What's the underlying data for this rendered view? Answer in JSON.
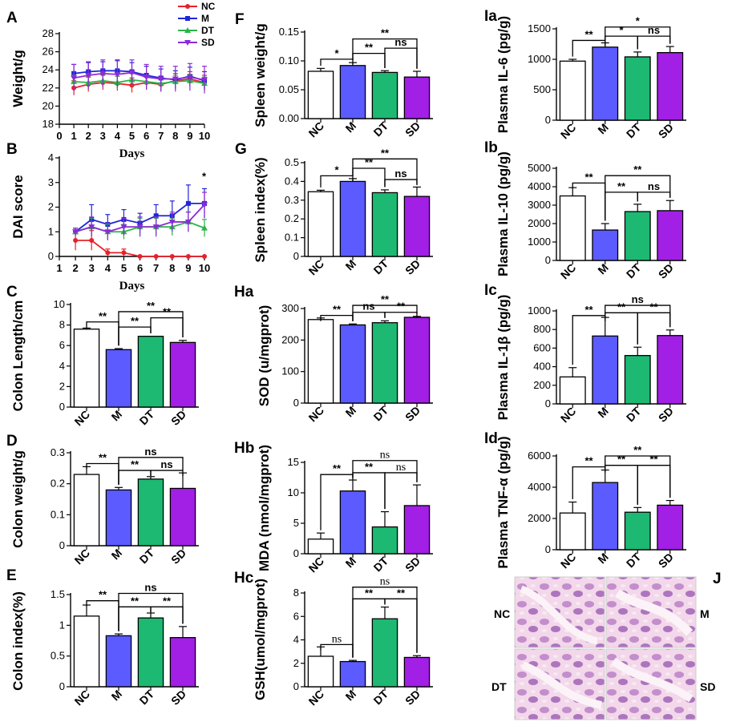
{
  "colors": {
    "NC": "#ffffff",
    "M": "#5b5bff",
    "DT": "#1db872",
    "SD": "#a21fe6",
    "NC_line": "#e8202a",
    "M_line": "#1f26d6",
    "DT_line": "#2bb34a",
    "SD_line": "#8b2bd6"
  },
  "legend": [
    "NC",
    "M",
    "DT",
    "SD"
  ],
  "chart_data": [
    {
      "id": "A",
      "panel_label": "A",
      "type": "line",
      "ylabel": "Weight/g",
      "xlabel": "Days",
      "x": [
        1,
        2,
        3,
        4,
        5,
        6,
        7,
        8,
        9,
        10
      ],
      "xlim": [
        0,
        10
      ],
      "xticks": [
        0,
        1,
        2,
        3,
        4,
        5,
        6,
        7,
        8,
        9,
        10
      ],
      "ylim": [
        18,
        28
      ],
      "yticks": [
        18,
        20,
        22,
        24,
        26,
        28
      ],
      "series": [
        {
          "name": "NC",
          "values": [
            22.0,
            22.4,
            22.6,
            22.5,
            22.3,
            22.6,
            22.4,
            22.8,
            23.0,
            22.6
          ],
          "errors": [
            0.8,
            0.8,
            0.8,
            0.8,
            0.8,
            0.8,
            0.8,
            0.8,
            0.8,
            0.8
          ]
        },
        {
          "name": "M",
          "values": [
            23.6,
            23.8,
            23.9,
            23.9,
            23.8,
            23.4,
            23.1,
            22.9,
            23.3,
            22.8
          ],
          "errors": [
            1.0,
            1.0,
            1.0,
            1.2,
            1.0,
            1.0,
            1.0,
            1.0,
            1.0,
            1.0
          ]
        },
        {
          "name": "DT",
          "values": [
            22.7,
            22.6,
            22.8,
            22.6,
            22.9,
            22.7,
            22.5,
            22.7,
            22.8,
            22.5
          ],
          "errors": [
            0.7,
            0.7,
            0.7,
            0.7,
            0.7,
            0.7,
            0.7,
            0.7,
            0.7,
            0.7
          ]
        },
        {
          "name": "SD",
          "values": [
            23.1,
            23.4,
            23.6,
            23.5,
            23.7,
            23.2,
            23.0,
            23.0,
            23.2,
            22.9
          ],
          "errors": [
            1.5,
            1.5,
            1.5,
            1.5,
            1.4,
            1.4,
            1.4,
            1.4,
            1.5,
            1.5
          ]
        }
      ]
    },
    {
      "id": "B",
      "panel_label": "B",
      "type": "line",
      "ylabel": "DAI score",
      "xlabel": "Days",
      "x": [
        2,
        3,
        4,
        5,
        6,
        7,
        8,
        9,
        10
      ],
      "xlim": [
        1,
        10
      ],
      "xticks": [
        1,
        2,
        3,
        4,
        5,
        6,
        7,
        8,
        9,
        10
      ],
      "ylim": [
        0,
        4
      ],
      "yticks": [
        0,
        1,
        2,
        3,
        4
      ],
      "annotation": {
        "text": "*",
        "x": 10,
        "y": 3.1
      },
      "series": [
        {
          "name": "NC",
          "values": [
            0.65,
            0.65,
            0.15,
            0.15,
            0.0,
            0.0,
            0.0,
            0.0,
            0.0
          ],
          "errors": [
            0.4,
            0.4,
            0.15,
            0.15,
            0,
            0,
            0,
            0,
            0
          ]
        },
        {
          "name": "M",
          "values": [
            1.0,
            1.5,
            1.3,
            1.5,
            1.35,
            1.65,
            1.65,
            2.15,
            2.15
          ],
          "errors": [
            0.15,
            0.6,
            0.4,
            0.4,
            0.4,
            0.45,
            0.6,
            0.75,
            0.6
          ]
        },
        {
          "name": "DT",
          "values": [
            1.0,
            1.2,
            1.0,
            1.0,
            1.2,
            1.2,
            1.2,
            1.4,
            1.15
          ],
          "errors": [
            0.15,
            0.35,
            0.3,
            0.3,
            0.35,
            0.35,
            0.35,
            0.4,
            0.35
          ]
        },
        {
          "name": "SD",
          "values": [
            1.0,
            1.2,
            1.0,
            1.2,
            1.2,
            1.2,
            1.4,
            1.4,
            2.1
          ],
          "errors": [
            0.15,
            0.4,
            0.35,
            0.35,
            0.4,
            0.4,
            0.4,
            0.4,
            0.5
          ]
        }
      ]
    },
    {
      "id": "C",
      "panel_label": "C",
      "type": "bar",
      "ylabel": "Colon Length/cm",
      "categories": [
        "NC",
        "M",
        "DT",
        "SD"
      ],
      "values": [
        7.6,
        5.6,
        6.9,
        6.3
      ],
      "errors": [
        0.1,
        0.1,
        0.0,
        0.2
      ],
      "ylim": [
        0,
        10
      ],
      "yticks": [
        0,
        2,
        4,
        6,
        8,
        10
      ],
      "brackets": [
        {
          "from": 0,
          "to": 1,
          "label": "**",
          "y": 8.3
        },
        {
          "from": 1,
          "to": 3,
          "label": "**",
          "y": 9.3
        },
        {
          "from": 1,
          "to": 2,
          "label": "**",
          "y": 7.8
        },
        {
          "from": 2,
          "to": 3,
          "label": "**",
          "y": 8.7
        }
      ]
    },
    {
      "id": "D",
      "panel_label": "D",
      "type": "bar",
      "ylabel": "Colon weight/g",
      "categories": [
        "NC",
        "M",
        "DT",
        "SD"
      ],
      "values": [
        0.23,
        0.18,
        0.215,
        0.185
      ],
      "errors": [
        0.025,
        0.008,
        0.008,
        0.05
      ],
      "ylim": [
        0,
        0.3
      ],
      "yticks": [
        0.0,
        0.1,
        0.2,
        0.3
      ],
      "brackets": [
        {
          "from": 0,
          "to": 1,
          "label": "**",
          "y": 0.265
        },
        {
          "from": 1,
          "to": 2,
          "label": "**",
          "y": 0.243
        },
        {
          "from": 1,
          "to": 3,
          "label": "ns",
          "y": 0.285
        },
        {
          "from": 2,
          "to": 3,
          "label": "ns",
          "y": 0.243
        }
      ]
    },
    {
      "id": "E",
      "panel_label": "E",
      "type": "bar",
      "ylabel": "Colon index(%)",
      "categories": [
        "NC",
        "M",
        "DT",
        "SD"
      ],
      "values": [
        1.15,
        0.83,
        1.12,
        0.8
      ],
      "errors": [
        0.18,
        0.03,
        0.08,
        0.18
      ],
      "ylim": [
        0,
        1.5
      ],
      "yticks": [
        0.0,
        0.5,
        1.0,
        1.5
      ],
      "brackets": [
        {
          "from": 0,
          "to": 1,
          "label": "**",
          "y": 1.4
        },
        {
          "from": 1,
          "to": 2,
          "label": "**",
          "y": 1.3
        },
        {
          "from": 1,
          "to": 3,
          "label": "ns",
          "y": 1.52
        },
        {
          "from": 2,
          "to": 3,
          "label": "**",
          "y": 1.3
        }
      ]
    },
    {
      "id": "F",
      "panel_label": "F",
      "type": "bar",
      "ylabel": "Spleen weight/g",
      "categories": [
        "NC",
        "M",
        "DT",
        "SD"
      ],
      "values": [
        0.082,
        0.092,
        0.08,
        0.072
      ],
      "errors": [
        0.005,
        0.005,
        0.003,
        0.01
      ],
      "ylim": [
        0,
        0.15
      ],
      "yticks": [
        0.0,
        0.05,
        0.1,
        0.15
      ],
      "yticklabels": [
        "0.00",
        "0.05",
        "0.10",
        "0.15"
      ],
      "brackets": [
        {
          "from": 0,
          "to": 1,
          "label": "*",
          "y": 0.103
        },
        {
          "from": 1,
          "to": 2,
          "label": "**",
          "y": 0.113
        },
        {
          "from": 1,
          "to": 3,
          "label": "**",
          "y": 0.138
        },
        {
          "from": 2,
          "to": 3,
          "label": "ns",
          "y": 0.122
        }
      ]
    },
    {
      "id": "G",
      "panel_label": "G",
      "type": "bar",
      "ylabel": "Spleen index(%)",
      "categories": [
        "NC",
        "M",
        "DT",
        "SD"
      ],
      "values": [
        0.345,
        0.4,
        0.34,
        0.32
      ],
      "errors": [
        0.008,
        0.015,
        0.015,
        0.05
      ],
      "ylim": [
        0,
        0.5
      ],
      "yticks": [
        0.0,
        0.1,
        0.2,
        0.3,
        0.4,
        0.5
      ],
      "brackets": [
        {
          "from": 0,
          "to": 1,
          "label": "*",
          "y": 0.43
        },
        {
          "from": 1,
          "to": 2,
          "label": "**",
          "y": 0.47
        },
        {
          "from": 1,
          "to": 3,
          "label": "**",
          "y": 0.52
        },
        {
          "from": 2,
          "to": 3,
          "label": "ns",
          "y": 0.41
        }
      ]
    },
    {
      "id": "Ha",
      "panel_label": "Ha",
      "type": "bar",
      "ylabel": "SOD (u/mgprot)",
      "categories": [
        "NC",
        "M",
        "DT",
        "SD"
      ],
      "values": [
        265,
        248,
        255,
        272
      ],
      "errors": [
        5,
        3,
        6,
        3
      ],
      "ylim": [
        0,
        300
      ],
      "yticks": [
        0,
        100,
        200,
        300
      ],
      "brackets": [
        {
          "from": 0,
          "to": 1,
          "label": "**",
          "y": 278
        },
        {
          "from": 1,
          "to": 2,
          "label": "ns",
          "y": 288
        },
        {
          "from": 1,
          "to": 3,
          "label": "**",
          "y": 310
        },
        {
          "from": 2,
          "to": 3,
          "label": "**",
          "y": 288
        }
      ]
    },
    {
      "id": "Hb",
      "panel_label": "Hb",
      "type": "bar",
      "ylabel": "MDA (nmol/mgprot)",
      "categories": [
        "NC",
        "M",
        "DT",
        "SD"
      ],
      "values": [
        2.4,
        10.3,
        4.4,
        7.9
      ],
      "errors": [
        1.0,
        1.8,
        2.5,
        3.4
      ],
      "ylim": [
        0,
        15
      ],
      "yticks": [
        0,
        5,
        10,
        15
      ],
      "brackets": [
        {
          "from": 0,
          "to": 1,
          "label": "**",
          "y": 13.0
        },
        {
          "from": 1,
          "to": 2,
          "label": "**",
          "y": 13.3
        },
        {
          "from": 1,
          "to": 3,
          "label": "ns",
          "y": 15.3
        },
        {
          "from": 2,
          "to": 3,
          "label": "ns",
          "y": 13.3
        }
      ]
    },
    {
      "id": "Hc",
      "panel_label": "Hc",
      "type": "bar",
      "ylabel": "GSH(umol/mgprot)",
      "categories": [
        "NC",
        "M",
        "DT",
        "SD"
      ],
      "values": [
        2.6,
        2.15,
        5.8,
        2.5
      ],
      "errors": [
        0.8,
        0.1,
        1.0,
        0.15
      ],
      "ylim": [
        0,
        8
      ],
      "yticks": [
        0,
        2,
        4,
        6,
        8
      ],
      "brackets": [
        {
          "from": 0,
          "to": 1,
          "label": "ns",
          "y": 3.6
        },
        {
          "from": 1,
          "to": 2,
          "label": "**",
          "y": 7.5
        },
        {
          "from": 1,
          "to": 3,
          "label": "ns",
          "y": 8.5
        },
        {
          "from": 2,
          "to": 3,
          "label": "**",
          "y": 7.5
        }
      ]
    },
    {
      "id": "Ia",
      "panel_label": "Ia",
      "type": "bar",
      "ylabel": "Plasma  IL-6 (pg/g)",
      "categories": [
        "NC",
        "M",
        "DT",
        "SD"
      ],
      "values": [
        970,
        1200,
        1040,
        1110
      ],
      "errors": [
        30,
        70,
        80,
        100
      ],
      "ylim": [
        0,
        1500
      ],
      "yticks": [
        0,
        500,
        1000,
        1500
      ],
      "brackets": [
        {
          "from": 0,
          "to": 1,
          "label": "**",
          "y": 1310
        },
        {
          "from": 1,
          "to": 2,
          "label": "*",
          "y": 1380
        },
        {
          "from": 1,
          "to": 3,
          "label": "*",
          "y": 1530
        },
        {
          "from": 2,
          "to": 3,
          "label": "ns",
          "y": 1380
        }
      ]
    },
    {
      "id": "Ib",
      "panel_label": "Ib",
      "type": "bar",
      "ylabel": "Plasma  IL-10 (pg/g)",
      "categories": [
        "NC",
        "M",
        "DT",
        "SD"
      ],
      "values": [
        3500,
        1650,
        2650,
        2700
      ],
      "errors": [
        450,
        350,
        400,
        550
      ],
      "ylim": [
        0,
        5000
      ],
      "yticks": [
        0,
        1000,
        2000,
        3000,
        4000,
        5000
      ],
      "brackets": [
        {
          "from": 0,
          "to": 1,
          "label": "**",
          "y": 4200
        },
        {
          "from": 1,
          "to": 2,
          "label": "**",
          "y": 3700
        },
        {
          "from": 1,
          "to": 3,
          "label": "**",
          "y": 4600
        },
        {
          "from": 2,
          "to": 3,
          "label": "ns",
          "y": 3700
        }
      ]
    },
    {
      "id": "Ic",
      "panel_label": "Ic",
      "type": "bar",
      "ylabel": "Plasma  IL-1β (pg/g)",
      "categories": [
        "NC",
        "M",
        "DT",
        "SD"
      ],
      "values": [
        290,
        730,
        520,
        735
      ],
      "errors": [
        100,
        200,
        90,
        60
      ],
      "ylim": [
        0,
        1000
      ],
      "yticks": [
        0,
        200,
        400,
        600,
        800,
        1000
      ],
      "brackets": [
        {
          "from": 0,
          "to": 1,
          "label": "**",
          "y": 950
        },
        {
          "from": 1,
          "to": 2,
          "label": "**",
          "y": 980
        },
        {
          "from": 1,
          "to": 3,
          "label": "ns",
          "y": 1060
        },
        {
          "from": 2,
          "to": 3,
          "label": "**",
          "y": 980
        }
      ]
    },
    {
      "id": "Id",
      "panel_label": "Id",
      "type": "bar",
      "ylabel": "Plasma TNF-α (pg/g)",
      "categories": [
        "NC",
        "M",
        "DT",
        "SD"
      ],
      "values": [
        2350,
        4300,
        2400,
        2850
      ],
      "errors": [
        700,
        800,
        300,
        300
      ],
      "ylim": [
        0,
        6000
      ],
      "yticks": [
        0,
        2000,
        4000,
        6000
      ],
      "brackets": [
        {
          "from": 0,
          "to": 1,
          "label": "**",
          "y": 5300
        },
        {
          "from": 1,
          "to": 2,
          "label": "**",
          "y": 5400
        },
        {
          "from": 1,
          "to": 3,
          "label": "**",
          "y": 6000
        },
        {
          "from": 2,
          "to": 3,
          "label": "**",
          "y": 5400
        }
      ]
    }
  ],
  "histology": {
    "panel_label": "J",
    "labels": [
      "NC",
      "M",
      "DT",
      "SD"
    ]
  }
}
